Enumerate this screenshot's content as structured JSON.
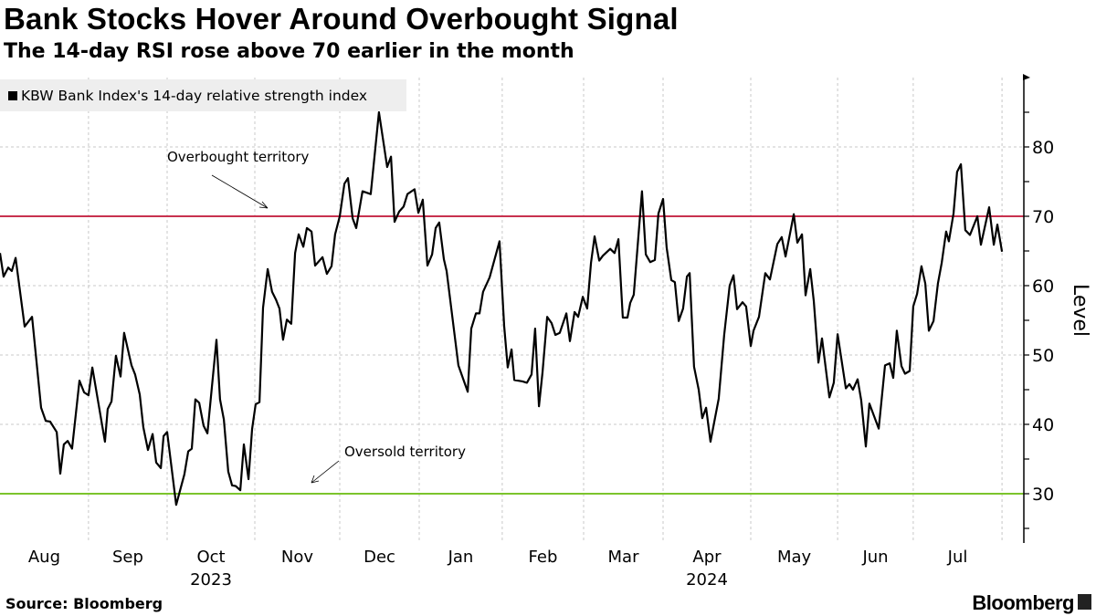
{
  "header": {
    "title": "Bank Stocks Hover Around Overbought Signal",
    "subtitle": "The 14-day RSI rose above 70 earlier in the month"
  },
  "footer": {
    "source": "Source: Bloomberg",
    "brand": "Bloomberg"
  },
  "colors": {
    "line": "#000000",
    "overbought": "#c8324f",
    "oversold": "#7cc42c",
    "grid": "#c8c8c8",
    "legend_bg": "#eeeeee"
  },
  "chart_data": {
    "type": "line",
    "title": "Bank Stocks Hover Around Overbought Signal",
    "subtitle": "The 14-day RSI rose above 70 earlier in the month",
    "xlabel": "",
    "ylabel": "Level",
    "x_unit": "days since 2023-08-01",
    "xlim": [
      0,
      373
    ],
    "ylim": [
      23,
      90
    ],
    "grid": true,
    "legend_placement": "top-left",
    "y_ticks": [
      30,
      40,
      50,
      60,
      70,
      80
    ],
    "y_minor_ticks": [
      25,
      35,
      45,
      55,
      65,
      75,
      85
    ],
    "y_gridlines": [
      40,
      50,
      60,
      80
    ],
    "month_boundaries": [
      0,
      32.3,
      61,
      93,
      124,
      153,
      183.3,
      213,
      242,
      274,
      305.7,
      333.3,
      365.7
    ],
    "x_tick_labels": [
      "Aug",
      "Sep",
      "Oct",
      "Nov",
      "Dec",
      "Jan",
      "Feb",
      "Mar",
      "Apr",
      "May",
      "Jun",
      "Jul"
    ],
    "year_labels": [
      {
        "label": "2023",
        "month": "Oct"
      },
      {
        "label": "2024",
        "month": "Apr"
      }
    ],
    "reference_lines": [
      {
        "name": "overbought",
        "value": 70,
        "label": "Overbought territory"
      },
      {
        "name": "oversold",
        "value": 30,
        "label": "Oversold territory"
      }
    ],
    "series": [
      {
        "name": "KBW Bank Index's 14-day relative strength index",
        "points": [
          [
            0,
            64.7
          ],
          [
            1.3,
            61.3
          ],
          [
            3,
            62.6
          ],
          [
            4.3,
            62.1
          ],
          [
            5.7,
            64
          ],
          [
            9,
            54.1
          ],
          [
            11.7,
            55.5
          ],
          [
            15,
            42.4
          ],
          [
            16.7,
            40.5
          ],
          [
            18.3,
            40.4
          ],
          [
            20.7,
            38.9
          ],
          [
            22,
            32.9
          ],
          [
            23.3,
            37.1
          ],
          [
            24.7,
            37.6
          ],
          [
            26.3,
            36.5
          ],
          [
            29,
            46.3
          ],
          [
            30.7,
            44.6
          ],
          [
            32.3,
            44.2
          ],
          [
            33.7,
            48.2
          ],
          [
            38.3,
            37.5
          ],
          [
            39.3,
            42.2
          ],
          [
            40.7,
            43.3
          ],
          [
            42.3,
            49.9
          ],
          [
            44,
            46.9
          ],
          [
            45.3,
            53.2
          ],
          [
            48,
            48.5
          ],
          [
            49.3,
            47.2
          ],
          [
            51,
            44.3
          ],
          [
            52.3,
            39.6
          ],
          [
            54,
            36.3
          ],
          [
            55.7,
            38.6
          ],
          [
            57,
            34.5
          ],
          [
            58.7,
            33.7
          ],
          [
            59.7,
            38.3
          ],
          [
            61,
            38.9
          ],
          [
            64.3,
            28.4
          ],
          [
            67.3,
            32.8
          ],
          [
            68.7,
            36.1
          ],
          [
            70,
            36.5
          ],
          [
            71.3,
            43.6
          ],
          [
            72.7,
            43.1
          ],
          [
            74.3,
            39.8
          ],
          [
            75.7,
            38.7
          ],
          [
            79,
            52.2
          ],
          [
            80.3,
            43.6
          ],
          [
            81.7,
            40.7
          ],
          [
            83.3,
            33.2
          ],
          [
            84.7,
            31.2
          ],
          [
            86,
            31.1
          ],
          [
            87.7,
            30.5
          ],
          [
            89,
            37.1
          ],
          [
            90.7,
            32.1
          ],
          [
            92,
            39.3
          ],
          [
            93.3,
            42.9
          ],
          [
            94.7,
            43.2
          ],
          [
            96,
            56.8
          ],
          [
            97.7,
            62.4
          ],
          [
            99.3,
            59.1
          ],
          [
            100.7,
            58
          ],
          [
            102,
            56.7
          ],
          [
            103.3,
            52.2
          ],
          [
            104.7,
            55.1
          ],
          [
            106.3,
            54.5
          ],
          [
            107.7,
            64.7
          ],
          [
            109,
            67.4
          ],
          [
            110.7,
            65.6
          ],
          [
            112,
            68.3
          ],
          [
            113.7,
            67.8
          ],
          [
            115,
            62.9
          ],
          [
            117.7,
            64.1
          ],
          [
            119.3,
            61.7
          ],
          [
            121,
            62.8
          ],
          [
            122.3,
            67.4
          ],
          [
            124,
            70
          ],
          [
            125.7,
            74.7
          ],
          [
            127,
            75.5
          ],
          [
            128.7,
            69.7
          ],
          [
            130,
            68.3
          ],
          [
            132.3,
            73.6
          ],
          [
            135.3,
            73.2
          ],
          [
            138.3,
            85
          ],
          [
            141.3,
            77.1
          ],
          [
            142.7,
            78.6
          ],
          [
            144,
            69.2
          ],
          [
            145.7,
            70.7
          ],
          [
            147.3,
            71.4
          ],
          [
            148.7,
            73.2
          ],
          [
            151.3,
            73.9
          ],
          [
            152.7,
            70.5
          ],
          [
            154.3,
            72.4
          ],
          [
            156,
            62.9
          ],
          [
            157.7,
            64.5
          ],
          [
            159,
            68.3
          ],
          [
            160.3,
            69.1
          ],
          [
            162,
            63.8
          ],
          [
            163,
            62.1
          ],
          [
            167.3,
            48.5
          ],
          [
            170.7,
            44.7
          ],
          [
            172,
            53.8
          ],
          [
            173.7,
            56
          ],
          [
            175,
            56
          ],
          [
            176.3,
            59.1
          ],
          [
            178.7,
            61.2
          ],
          [
            182.3,
            66.4
          ],
          [
            184,
            54.2
          ],
          [
            185.3,
            48.2
          ],
          [
            186.7,
            50.8
          ],
          [
            187.7,
            46.4
          ],
          [
            190.7,
            46.2
          ],
          [
            192.3,
            46
          ],
          [
            194,
            47.2
          ],
          [
            195.3,
            53.8
          ],
          [
            196.7,
            42.6
          ],
          [
            198,
            47.5
          ],
          [
            199.7,
            55.5
          ],
          [
            201.3,
            54.6
          ],
          [
            202.7,
            52.9
          ],
          [
            204.3,
            53.2
          ],
          [
            206.7,
            56
          ],
          [
            208,
            52
          ],
          [
            209.7,
            56.2
          ],
          [
            211,
            55.5
          ],
          [
            212.7,
            58.4
          ],
          [
            214.3,
            56.7
          ],
          [
            215.7,
            63.3
          ],
          [
            217,
            67.1
          ],
          [
            218.7,
            63.6
          ],
          [
            220,
            64.3
          ],
          [
            222.7,
            65.3
          ],
          [
            224.3,
            64.7
          ],
          [
            225.7,
            66.7
          ],
          [
            227.3,
            55.4
          ],
          [
            229,
            55.4
          ],
          [
            230,
            57.5
          ],
          [
            231.3,
            58.7
          ],
          [
            234.3,
            73.6
          ],
          [
            235.7,
            64.5
          ],
          [
            237.3,
            63.4
          ],
          [
            239,
            63.7
          ],
          [
            240.3,
            70.4
          ],
          [
            242,
            72.5
          ],
          [
            243.3,
            65.5
          ],
          [
            245,
            60.8
          ],
          [
            246.3,
            60.5
          ],
          [
            247.7,
            54.9
          ],
          [
            249.3,
            56.7
          ],
          [
            250.7,
            61.3
          ],
          [
            251.7,
            61.8
          ],
          [
            253.3,
            48.3
          ],
          [
            255,
            45
          ],
          [
            256.3,
            40.9
          ],
          [
            257.7,
            42.4
          ],
          [
            259.3,
            37.5
          ],
          [
            262.3,
            43.7
          ],
          [
            264.3,
            52.9
          ],
          [
            266.3,
            60
          ],
          [
            267.7,
            61.5
          ],
          [
            269,
            56.6
          ],
          [
            271,
            57.6
          ],
          [
            272.3,
            57
          ],
          [
            274,
            51.3
          ],
          [
            275,
            53.5
          ],
          [
            277,
            55.5
          ],
          [
            279.3,
            61.8
          ],
          [
            281,
            60.9
          ],
          [
            283.7,
            66
          ],
          [
            285.3,
            67
          ],
          [
            286.7,
            64.2
          ],
          [
            289.7,
            70.3
          ],
          [
            291,
            66.2
          ],
          [
            292.7,
            67.4
          ],
          [
            294,
            58.6
          ],
          [
            295.7,
            62.4
          ],
          [
            297,
            57.8
          ],
          [
            298.7,
            48.9
          ],
          [
            300,
            52.4
          ],
          [
            302.7,
            43.9
          ],
          [
            304.3,
            46
          ],
          [
            305.7,
            53
          ],
          [
            308.7,
            45.2
          ],
          [
            310,
            45.8
          ],
          [
            311.3,
            45
          ],
          [
            313,
            46.5
          ],
          [
            314.3,
            43.5
          ],
          [
            316,
            36.8
          ],
          [
            317.3,
            43
          ],
          [
            320.7,
            39.4
          ],
          [
            323,
            48.5
          ],
          [
            324.7,
            48.8
          ],
          [
            326,
            46.7
          ],
          [
            327.3,
            53.5
          ],
          [
            329,
            48.4
          ],
          [
            330.3,
            47.3
          ],
          [
            332,
            47.7
          ],
          [
            333.3,
            57
          ],
          [
            334.7,
            58.8
          ],
          [
            336.3,
            62.8
          ],
          [
            337.7,
            60.3
          ],
          [
            339,
            53.5
          ],
          [
            340.7,
            54.9
          ],
          [
            342.3,
            60.3
          ],
          [
            343.7,
            63.3
          ],
          [
            345.3,
            67.8
          ],
          [
            346.3,
            66.4
          ],
          [
            348,
            70.4
          ],
          [
            349.3,
            76.4
          ],
          [
            350.7,
            77.5
          ],
          [
            352.3,
            68
          ],
          [
            354,
            67.3
          ],
          [
            356.7,
            70
          ],
          [
            358,
            65.9
          ],
          [
            361,
            71.3
          ],
          [
            362.7,
            65.9
          ],
          [
            364,
            68.8
          ],
          [
            365.7,
            64.9
          ]
        ]
      }
    ]
  }
}
